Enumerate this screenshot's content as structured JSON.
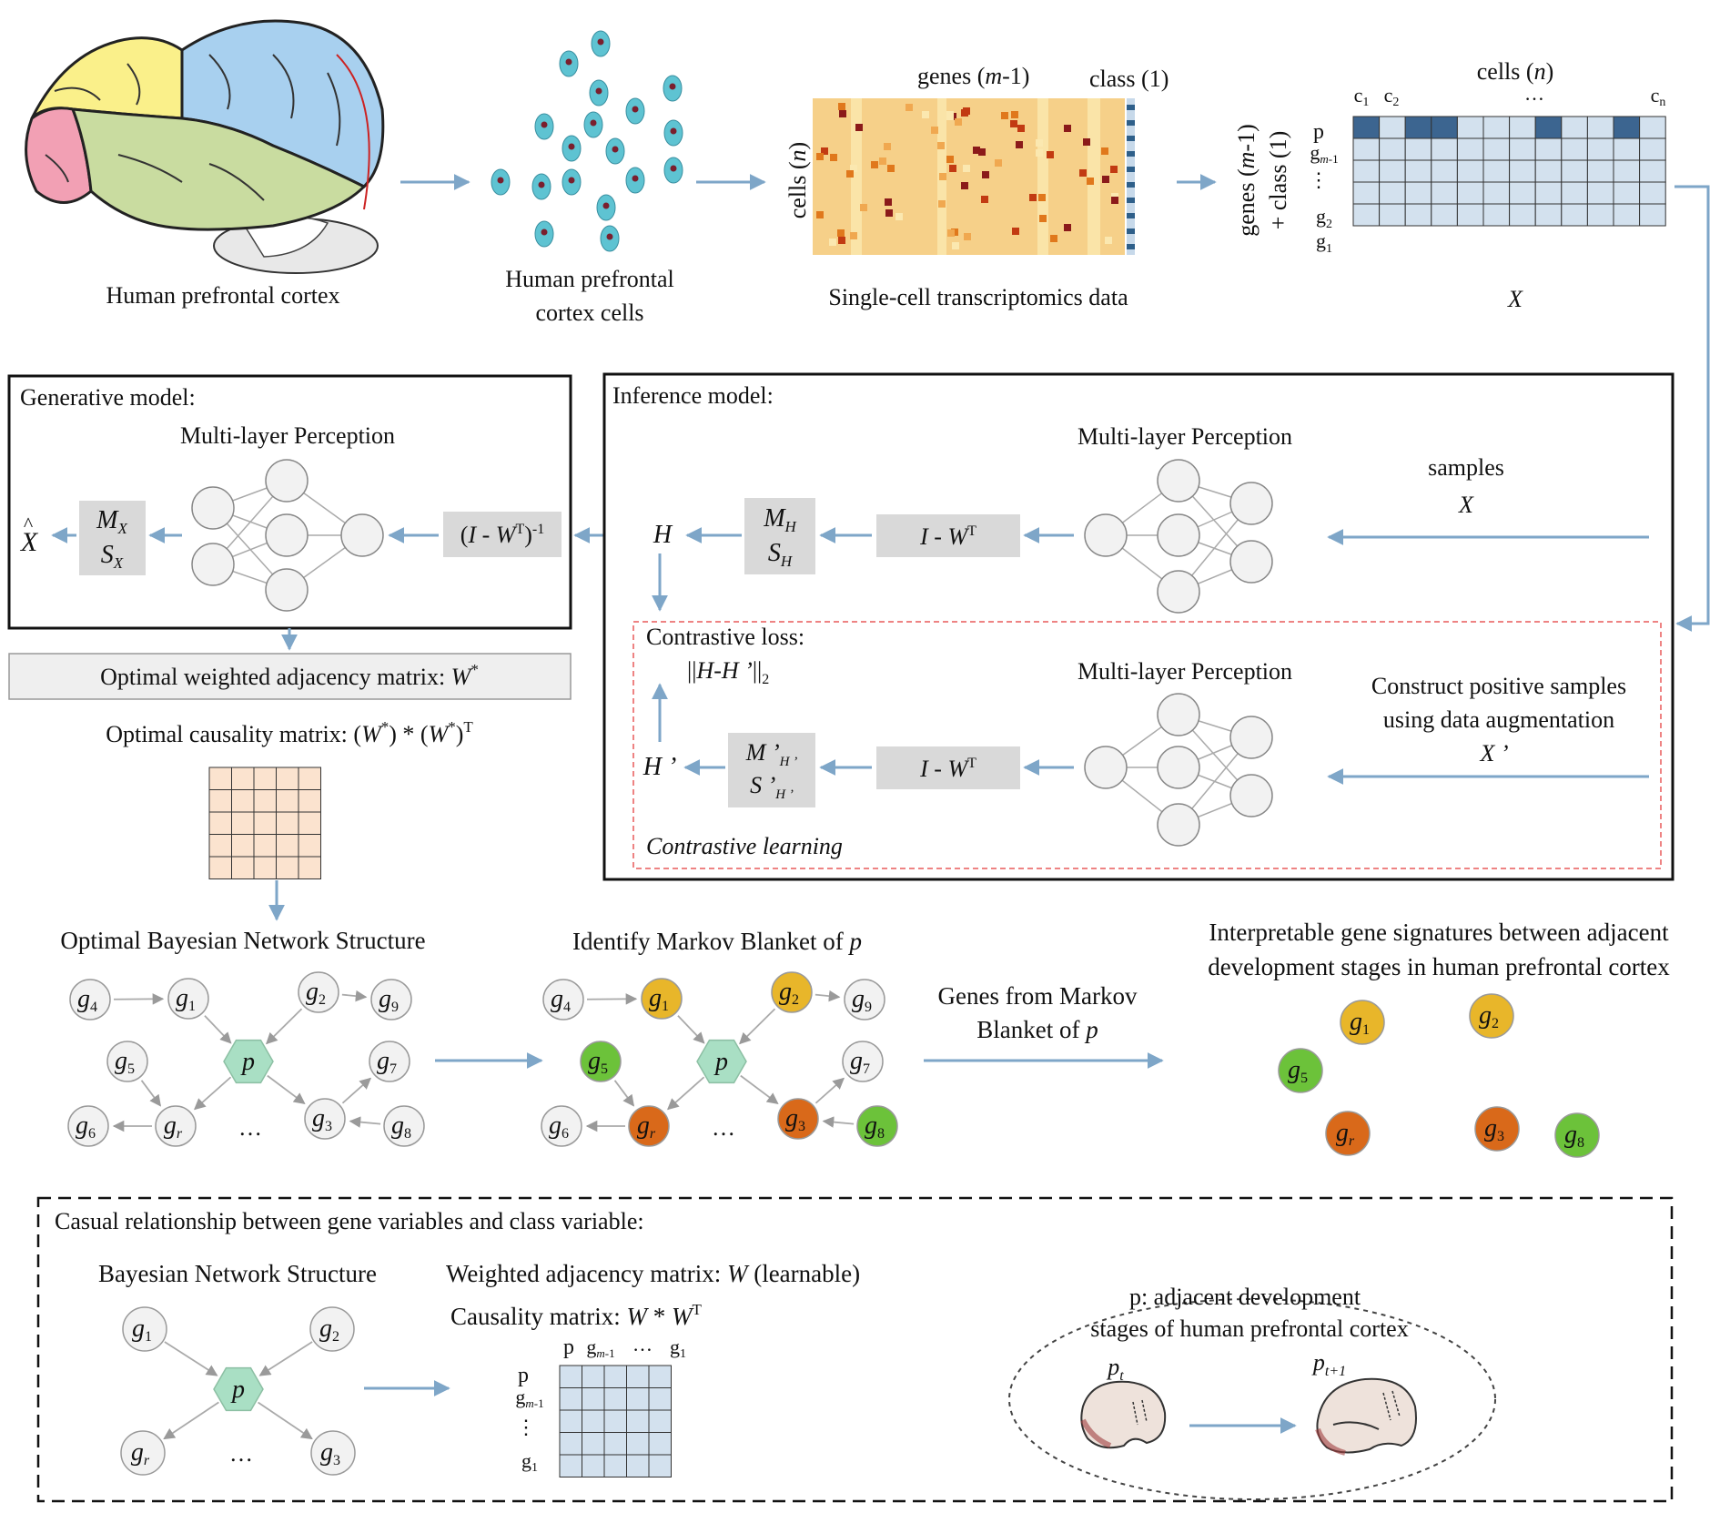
{
  "top": {
    "brain_label": "Human prefrontal cortex",
    "cells_label_1": "Human prefrontal",
    "cells_label_2": "cortex cells",
    "heatmap_label": "Single-cell transcriptomics data",
    "genes_header": "genes (m-1)",
    "class_header": "class (1)",
    "cells_axis": "cells (n)",
    "matrix_cells_header": "cells (n)",
    "matrix_cols": [
      "c1",
      "c2",
      "…",
      "cn"
    ],
    "matrix_rows": [
      "p",
      "gm-1",
      "…",
      "g2",
      "g1"
    ],
    "matrix_axis_1": "genes (m-1)",
    "matrix_axis_2": "+ class (1)",
    "matrix_name": "X"
  },
  "generative": {
    "title": "Generative model:",
    "mlp_label": "Multi-layer Perception",
    "xhat": "X",
    "mx": "M",
    "mx_sub": "X",
    "sx": "S",
    "sx_sub": "X",
    "inv_box_a": "(I - W",
    "inv_box_sup": "T",
    "inv_box_b": ")",
    "inv_box_exp": "-1"
  },
  "optimal": {
    "adjacency_label": "Optimal weighted adjacency matrix: W",
    "adjacency_sup": "*",
    "causality_a": "Optimal causality matrix: (W",
    "causality_sup1": "*",
    "causality_b": ") * (W",
    "causality_sup2": "*",
    "causality_c": ")",
    "causality_sup3": "T"
  },
  "inference": {
    "title": "Inference model:",
    "mlp_label_1": "Multi-layer Perception",
    "mlp_label_2": "Multi-layer Perception",
    "samples": "samples",
    "x": "X",
    "h": "H",
    "mh": "M",
    "mh_sub": "H",
    "sh": "S",
    "sh_sub": "H",
    "iw_a": "I - W",
    "iw_sup": "T",
    "contrastive_loss": "Contrastive loss:",
    "loss_formula": "||H-H ’||",
    "loss_sub": "2",
    "construct_1": "Construct positive samples",
    "construct_2": "using data augmentation",
    "x_prime": "X ’",
    "h_prime": "H ’",
    "mh_prime": "M ’",
    "mh_prime_sub": "H ’",
    "sh_prime": "S ’",
    "sh_prime_sub": "H ’",
    "contrastive_learning": "Contrastive learning"
  },
  "bottom": {
    "optimal_bn": "Optimal Bayesian Network Structure",
    "identify_mb": "Identify Markov Blanket of p",
    "genes_from_1": "Genes from Markov",
    "genes_from_2": "Blanket of p",
    "interp_1": "Interpretable gene signatures between adjacent",
    "interp_2": "development stages in human prefrontal cortex",
    "ellipsis": "…",
    "node_labels": {
      "g": "g",
      "p": "p",
      "s1": "1",
      "s2": "2",
      "s3": "3",
      "s4": "4",
      "s5": "5",
      "s6": "6",
      "s7": "7",
      "s8": "8",
      "s9": "9",
      "sr": "r"
    }
  },
  "legend": {
    "title": "Casual relationship between gene variables and class variable:",
    "bn_label": "Bayesian Network Structure",
    "weighted_a": "Weighted adjacency matrix: W (learnable)",
    "causality_a": "Causality matrix: W * W",
    "causality_sup": "T",
    "mat_cols": [
      "p",
      "gm-1",
      "…",
      "g1"
    ],
    "mat_rows": [
      "p",
      "gm-1",
      "…",
      "g1"
    ],
    "ellipse_1": "p: adjacent development",
    "ellipse_2": "stages of human prefrontal cortex",
    "pt": "p",
    "pt_sub": "t",
    "pt1": "p",
    "pt1_sub": "t+1"
  },
  "colors": {
    "arrow": "#7ea6c8",
    "box_gray": "#d9d9d9",
    "node_gray": "#f2f2f2",
    "hex_green": "#a9dfc4",
    "gold": "#e8b62a",
    "orange": "#d9691a",
    "green": "#6cc23a",
    "matrix_blue": "#d3e1ee",
    "matrix_dark": "#3c6590",
    "causality_peach": "#fbe3cf",
    "heat_base": "#f6d089",
    "dashed_red": "#e85a5a"
  }
}
